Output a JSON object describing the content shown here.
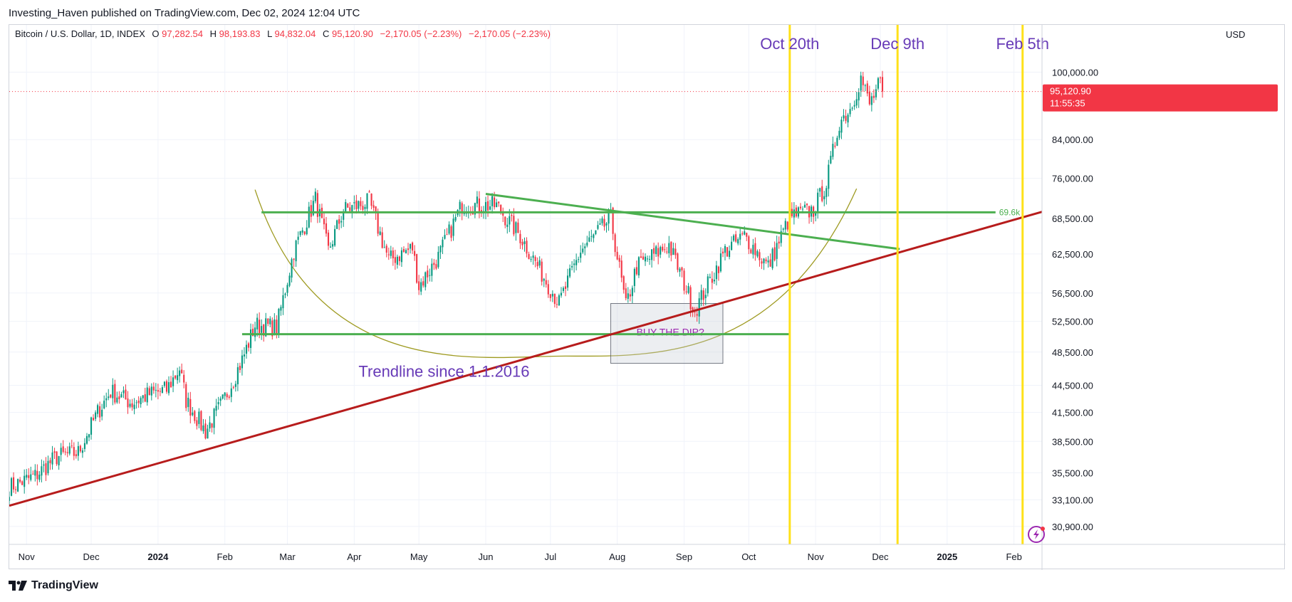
{
  "publisher_line": "Investing_Haven published on TradingView.com, Dec 02, 2024 12:04 UTC",
  "footer_brand": "TradingView",
  "chart_data": {
    "type": "candlestick",
    "symbol_line": {
      "name": "Bitcoin / U.S. Dollar, 1D, INDEX",
      "o_label": "O",
      "o_value": "97,282.54",
      "h_label": "H",
      "h_value": "98,193.83",
      "l_label": "L",
      "l_value": "94,832.04",
      "c_label": "C",
      "c_value": "95,120.90",
      "change": "−2,170.05 (−2.23%)",
      "change2": "−2,170.05 (−2.23%)"
    },
    "currency": "USD",
    "price_axis_ticks": [
      "100,000.00",
      "84,000.00",
      "76,000.00",
      "68,500.00",
      "62,500.00",
      "56,500.00",
      "52,500.00",
      "48,500.00",
      "44,500.00",
      "41,500.00",
      "38,500.00",
      "35,500.00",
      "33,100.00",
      "30,900.00"
    ],
    "price_axis_values": [
      100000,
      84000,
      76000,
      68500,
      62500,
      56500,
      52500,
      48500,
      44500,
      41500,
      38500,
      35500,
      33100,
      30900
    ],
    "time_axis_labels": [
      "Nov",
      "Dec",
      "2024",
      "Feb",
      "Mar",
      "Apr",
      "May",
      "Jun",
      "Jul",
      "Aug",
      "Sep",
      "Oct",
      "Nov",
      "Dec",
      "2025",
      "Feb"
    ],
    "time_axis_dates": [
      "2023-11-01",
      "2023-12-01",
      "2024-01-01",
      "2024-02-01",
      "2024-03-01",
      "2024-04-01",
      "2024-05-01",
      "2024-06-01",
      "2024-07-01",
      "2024-08-01",
      "2024-09-01",
      "2024-10-01",
      "2024-11-01",
      "2024-12-01",
      "2025-01-01",
      "2025-02-01"
    ],
    "x_range": [
      "2023-10-24",
      "2025-02-14"
    ],
    "y_range": [
      29500,
      113000
    ],
    "y_scale": "log",
    "last_price_label": "95,120.90",
    "countdown_label": "11:55:35",
    "last_price": 95120.9,
    "price_waypoints": [
      [
        "2023-10-24",
        34200
      ],
      [
        "2023-11-05",
        35200
      ],
      [
        "2023-11-15",
        37000
      ],
      [
        "2023-11-25",
        37400
      ],
      [
        "2023-12-04",
        41500
      ],
      [
        "2023-12-10",
        43800
      ],
      [
        "2023-12-20",
        42500
      ],
      [
        "2023-12-28",
        43500
      ],
      [
        "2024-01-05",
        44000
      ],
      [
        "2024-01-11",
        46500
      ],
      [
        "2024-01-14",
        42800
      ],
      [
        "2024-01-23",
        39500
      ],
      [
        "2024-01-31",
        42600
      ],
      [
        "2024-02-09",
        47500
      ],
      [
        "2024-02-15",
        52000
      ],
      [
        "2024-02-25",
        51700
      ],
      [
        "2024-03-04",
        63000
      ],
      [
        "2024-03-14",
        72000
      ],
      [
        "2024-03-20",
        63000
      ],
      [
        "2024-03-27",
        70000
      ],
      [
        "2024-04-08",
        71500
      ],
      [
        "2024-04-17",
        61500
      ],
      [
        "2024-04-28",
        63500
      ],
      [
        "2024-05-01",
        57500
      ],
      [
        "2024-05-10",
        62000
      ],
      [
        "2024-05-21",
        71000
      ],
      [
        "2024-06-06",
        70800
      ],
      [
        "2024-06-17",
        65500
      ],
      [
        "2024-07-05",
        55000
      ],
      [
        "2024-07-15",
        63000
      ],
      [
        "2024-07-29",
        68500
      ],
      [
        "2024-08-05",
        54500
      ],
      [
        "2024-08-10",
        60500
      ],
      [
        "2024-08-25",
        64000
      ],
      [
        "2024-09-06",
        54000
      ],
      [
        "2024-09-20",
        63000
      ],
      [
        "2024-09-29",
        65500
      ],
      [
        "2024-10-10",
        60500
      ],
      [
        "2024-10-20",
        68800
      ],
      [
        "2024-10-31",
        70000
      ],
      [
        "2024-11-06",
        75000
      ],
      [
        "2024-11-12",
        88000
      ],
      [
        "2024-11-17",
        91000
      ],
      [
        "2024-11-22",
        98500
      ],
      [
        "2024-11-26",
        92000
      ],
      [
        "2024-12-01",
        97300
      ],
      [
        "2024-12-02",
        95120.9
      ]
    ],
    "horizontal_levels": [
      {
        "price": 69600,
        "from": "2024-02-18",
        "label": "69.6k",
        "color": "#4caf50"
      },
      {
        "price": 50800,
        "from": "2024-02-09",
        "to": "2024-10-20",
        "color": "#4caf50"
      }
    ],
    "trendlines": [
      {
        "name": "Trendline since 1.1.2016",
        "from": [
          "2023-10-24",
          32600
        ],
        "to": [
          "2025-02-14",
          69700
        ],
        "color": "#b71c1c"
      },
      {
        "from": [
          "2024-06-01",
          73000
        ],
        "to": [
          "2024-12-10",
          63300
        ],
        "color": "#4caf50"
      }
    ],
    "arc": {
      "from": [
        "2024-02-15",
        73800
      ],
      "bottom": [
        "2024-07-08",
        48000
      ],
      "to": [
        "2024-11-20",
        74000
      ],
      "color": "#9e9a20"
    },
    "box": {
      "from": [
        "2024-07-29",
        55000
      ],
      "to": [
        "2024-09-19",
        47100
      ],
      "label": "BUY THE DIP?"
    },
    "vertical_lines": [
      {
        "date": "2024-10-20",
        "label": "Oct 20th",
        "color": "#ffe119"
      },
      {
        "date": "2024-12-09",
        "label": "Dec 9th",
        "color": "#ffe119"
      },
      {
        "date": "2025-02-05",
        "label": "Feb 5th",
        "color": "#ffe119"
      }
    ],
    "annotations": [
      {
        "text": "Trendline since 1.1.2016",
        "color": "#673ab7",
        "at": [
          "2024-04-03",
          45500
        ]
      }
    ],
    "colors": {
      "up": "#089981",
      "down": "#f23645",
      "grid": "#f0f3fa"
    }
  }
}
